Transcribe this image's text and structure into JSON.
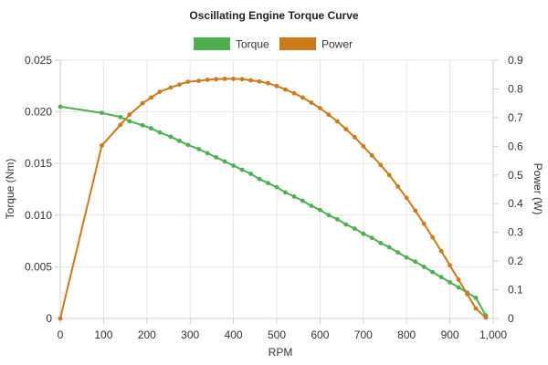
{
  "chart_data": {
    "type": "line",
    "title": "Oscillating Engine Torque Curve",
    "xlabel": "RPM",
    "ylabel_left": "Torque (Nm)",
    "ylabel_right": "Power (W)",
    "xlim": [
      0,
      1000
    ],
    "ylim_left": [
      0,
      0.025
    ],
    "ylim_right": [
      0,
      0.9
    ],
    "xticks": [
      "0",
      "100",
      "200",
      "300",
      "400",
      "500",
      "600",
      "700",
      "800",
      "900",
      "1,000"
    ],
    "yticks_left": [
      "0",
      "0.005",
      "0.010",
      "0.015",
      "0.020",
      "0.025"
    ],
    "yticks_right": [
      "0",
      "0.1",
      "0.2",
      "0.3",
      "0.4",
      "0.5",
      "0.6",
      "0.7",
      "0.8",
      "0.9"
    ],
    "grid": true,
    "legend_position": "top-center",
    "series": [
      {
        "name": "Torque",
        "color": "#4caf50",
        "axis": "left",
        "x": [
          0,
          96,
          139,
          160,
          190,
          210,
          230,
          255,
          275,
          295,
          320,
          340,
          360,
          380,
          400,
          420,
          440,
          460,
          480,
          500,
          520,
          540,
          560,
          580,
          600,
          620,
          640,
          660,
          680,
          700,
          720,
          740,
          760,
          780,
          800,
          820,
          840,
          860,
          880,
          900,
          920,
          940,
          960,
          983
        ],
        "y": [
          0.0205,
          0.0199,
          0.0195,
          0.0191,
          0.0187,
          0.0184,
          0.018,
          0.0176,
          0.0172,
          0.0168,
          0.0164,
          0.016,
          0.0156,
          0.0152,
          0.0148,
          0.0144,
          0.014,
          0.0135,
          0.0131,
          0.0127,
          0.0122,
          0.0118,
          0.0114,
          0.0109,
          0.0105,
          0.01,
          0.0096,
          0.0091,
          0.0087,
          0.0082,
          0.0078,
          0.0073,
          0.0069,
          0.0064,
          0.0059,
          0.0055,
          0.005,
          0.0045,
          0.004,
          0.0035,
          0.003,
          0.0025,
          0.002,
          0.0003
        ]
      },
      {
        "name": "Power",
        "color": "#cc7a1a",
        "axis": "right",
        "x": [
          0,
          96,
          139,
          160,
          190,
          210,
          230,
          255,
          275,
          295,
          320,
          340,
          360,
          380,
          400,
          420,
          440,
          460,
          480,
          500,
          520,
          540,
          560,
          580,
          600,
          620,
          640,
          660,
          680,
          700,
          720,
          740,
          760,
          780,
          800,
          820,
          840,
          860,
          880,
          900,
          920,
          940,
          960,
          983
        ],
        "y": [
          0.0,
          0.603,
          0.675,
          0.71,
          0.75,
          0.77,
          0.79,
          0.805,
          0.815,
          0.825,
          0.828,
          0.832,
          0.834,
          0.835,
          0.835,
          0.834,
          0.83,
          0.826,
          0.82,
          0.81,
          0.798,
          0.785,
          0.77,
          0.752,
          0.733,
          0.71,
          0.687,
          0.66,
          0.632,
          0.6,
          0.568,
          0.535,
          0.5,
          0.46,
          0.42,
          0.376,
          0.33,
          0.283,
          0.235,
          0.185,
          0.135,
          0.085,
          0.035,
          0.003
        ]
      }
    ]
  }
}
